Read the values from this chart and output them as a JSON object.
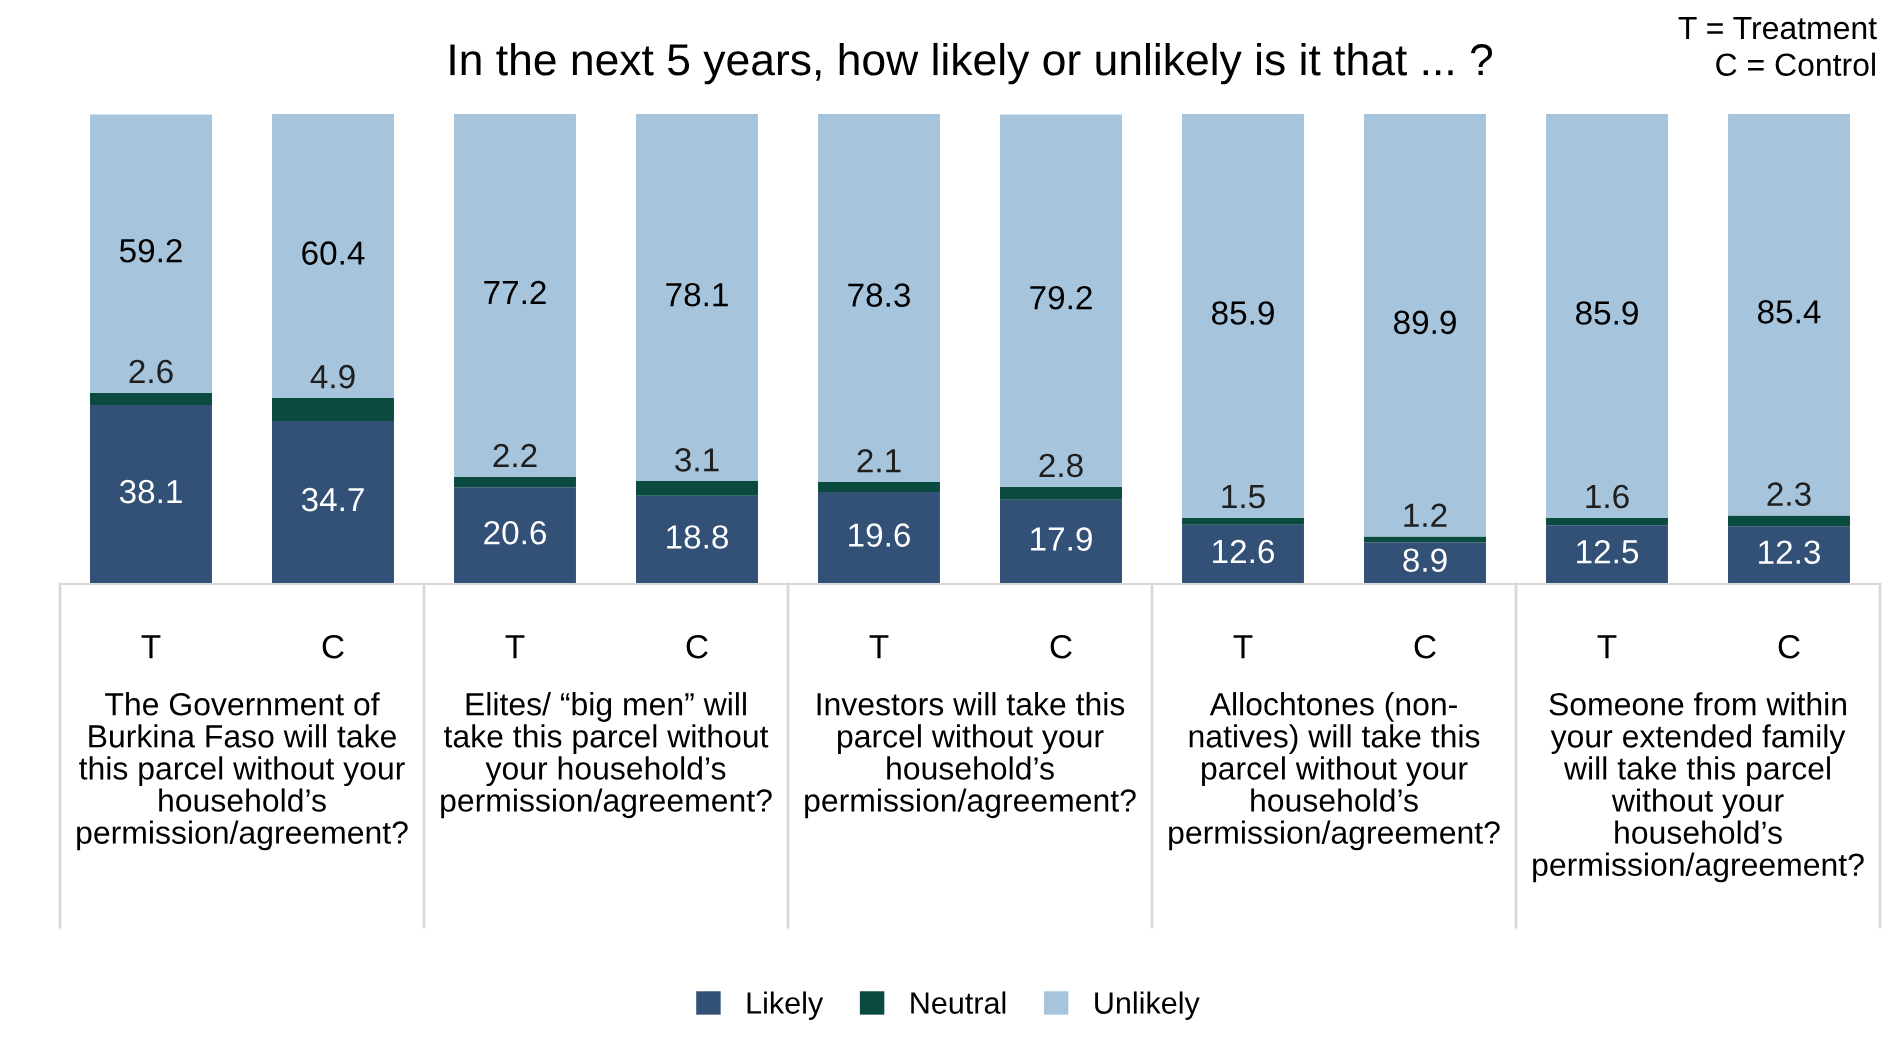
{
  "chart_data": {
    "type": "bar",
    "title": "In the next 5 years, how likely or unlikely is it that ... ?",
    "categories": [
      "T",
      "C",
      "T",
      "C",
      "T",
      "C",
      "T",
      "C",
      "T",
      "C"
    ],
    "stacked": true,
    "series": [
      {
        "name": "Likely",
        "color": "#335077",
        "values": [
          38.1,
          34.7,
          20.6,
          18.8,
          19.6,
          17.9,
          12.6,
          8.9,
          12.5,
          12.3
        ]
      },
      {
        "name": "Neutral",
        "color": "#0a4a3f",
        "values": [
          2.6,
          4.9,
          2.2,
          3.1,
          2.1,
          2.8,
          1.5,
          1.2,
          1.6,
          2.3
        ]
      },
      {
        "name": "Unlikely",
        "color": "#a6c5dd",
        "values": [
          59.2,
          60.4,
          77.2,
          78.1,
          78.3,
          79.2,
          85.9,
          89.9,
          85.9,
          85.4
        ]
      }
    ],
    "ylim": [
      0,
      100
    ],
    "tick_labels": "x",
    "data_labels": true,
    "grid": false,
    "legend": "bottom",
    "annotations": [
      "The Government of\nBurkina Faso will take\nthis parcel without your\nhousehold’s\npermission/agreement?",
      "Elites/ “big men” will\ntake this parcel without\nyour household’s\npermission/agreement?",
      "Investors will take this\nparcel without your\nhousehold’s\npermission/agreement?",
      "Allochtones (non-\nnatives) will take this\nparcel without your\nhousehold’s\npermission/agreement?",
      "Someone from within\nyour extended family\nwill take this parcel\nwithout your\nhousehold’s\npermission/agreement?",
      "T = Treatment\nC = Control"
    ]
  }
}
